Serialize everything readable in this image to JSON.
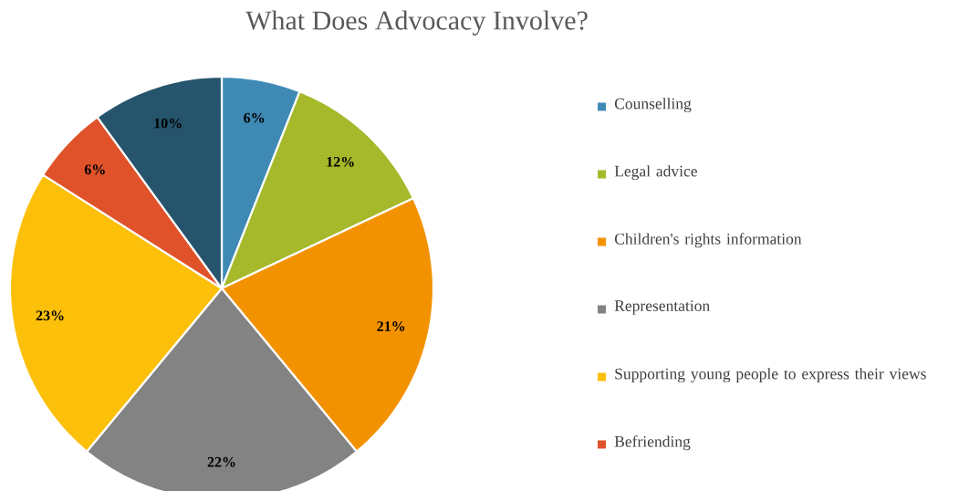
{
  "chart_data": {
    "type": "pie",
    "title": "What Does Advocacy Involve?",
    "categories": [
      "Counselling",
      "Legal advice",
      "Children's rights information",
      "Representation",
      "Supporting young people to express their views",
      "Befriending",
      null
    ],
    "values": [
      6,
      12,
      21,
      22,
      23,
      6,
      10
    ],
    "colors": [
      "#3f8ab5",
      "#a5b92a",
      "#f39200",
      "#838383",
      "#fcc00a",
      "#e0522a",
      "#26546d"
    ],
    "value_labels": [
      "6%",
      "12%",
      "21%",
      "22%",
      "23%",
      "6%",
      "10%"
    ],
    "legend": "right"
  }
}
